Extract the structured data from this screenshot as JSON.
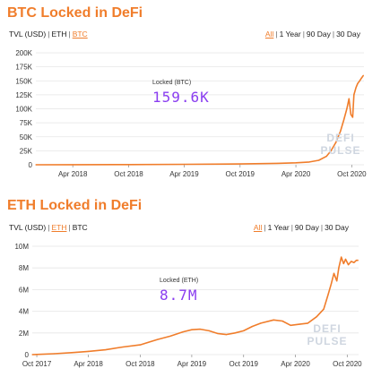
{
  "btc": {
    "title": "BTC Locked in DeFi",
    "units": [
      "TVL (USD)",
      "ETH",
      "BTC"
    ],
    "active_unit": 2,
    "ranges": [
      "All",
      "1 Year",
      "90 Day",
      "30 Day"
    ],
    "active_range": 0,
    "annotation_label": "Locked (BTC)",
    "annotation_value": "159.6K",
    "watermark": [
      "DEFI",
      "PULSE"
    ]
  },
  "eth": {
    "title": "ETH Locked in DeFi",
    "units": [
      "TVL (USD)",
      "ETH",
      "BTC"
    ],
    "active_unit": 1,
    "ranges": [
      "All",
      "1 Year",
      "90 Day",
      "30 Day"
    ],
    "active_range": 0,
    "annotation_label": "Locked (ETH)",
    "annotation_value": "8.7M",
    "watermark": [
      "DEFI",
      "PULSE"
    ]
  },
  "colors": {
    "accent": "#f07d2b",
    "value": "#8a3df0",
    "grid": "#e5e5e5",
    "watermark": "#cfd6e0"
  },
  "chart_data": [
    {
      "type": "area",
      "title": "BTC Locked in DeFi",
      "series_label": "Locked (BTC)",
      "x_ticks": [
        "Apr 2018",
        "Oct 2018",
        "Apr 2019",
        "Oct 2019",
        "Apr 2020",
        "Oct 2020"
      ],
      "y_ticks": [
        "0",
        "25K",
        "50K",
        "75K",
        "100K",
        "125K",
        "150K",
        "175K",
        "200K"
      ],
      "ylim": [
        0,
        200000
      ],
      "xlim": [
        "2017-12-01",
        "2020-11-10"
      ],
      "grid": true,
      "points": [
        [
          "2017-12-01",
          0
        ],
        [
          "2018-04-01",
          100
        ],
        [
          "2018-10-01",
          300
        ],
        [
          "2019-04-01",
          800
        ],
        [
          "2019-10-01",
          1500
        ],
        [
          "2020-02-01",
          2500
        ],
        [
          "2020-04-01",
          3500
        ],
        [
          "2020-05-15",
          5000
        ],
        [
          "2020-06-15",
          8000
        ],
        [
          "2020-07-10",
          15000
        ],
        [
          "2020-07-25",
          25000
        ],
        [
          "2020-08-10",
          40000
        ],
        [
          "2020-08-25",
          60000
        ],
        [
          "2020-09-05",
          80000
        ],
        [
          "2020-09-15",
          100000
        ],
        [
          "2020-09-22",
          118000
        ],
        [
          "2020-09-28",
          90000
        ],
        [
          "2020-10-04",
          85000
        ],
        [
          "2020-10-08",
          125000
        ],
        [
          "2020-10-15",
          138000
        ],
        [
          "2020-10-20",
          145000
        ],
        [
          "2020-10-27",
          150000
        ],
        [
          "2020-11-02",
          155000
        ],
        [
          "2020-11-08",
          159600
        ]
      ]
    },
    {
      "type": "area",
      "title": "ETH Locked in DeFi",
      "series_label": "Locked (ETH)",
      "x_ticks": [
        "Oct 2017",
        "Apr 2018",
        "Oct 2018",
        "Apr 2019",
        "Oct 2019",
        "Apr 2020",
        "Oct 2020"
      ],
      "y_ticks": [
        "0",
        "2M",
        "4M",
        "6M",
        "8M",
        "10M"
      ],
      "ylim": [
        0,
        10000000
      ],
      "xlim": [
        "2017-09-15",
        "2020-11-10"
      ],
      "grid": true,
      "points": [
        [
          "2017-09-15",
          0
        ],
        [
          "2017-10-01",
          20000
        ],
        [
          "2017-12-01",
          80000
        ],
        [
          "2018-02-01",
          180000
        ],
        [
          "2018-04-01",
          300000
        ],
        [
          "2018-06-01",
          450000
        ],
        [
          "2018-08-01",
          700000
        ],
        [
          "2018-10-01",
          900000
        ],
        [
          "2018-12-01",
          1400000
        ],
        [
          "2019-01-15",
          1700000
        ],
        [
          "2019-03-01",
          2100000
        ],
        [
          "2019-04-01",
          2300000
        ],
        [
          "2019-05-01",
          2350000
        ],
        [
          "2019-06-01",
          2200000
        ],
        [
          "2019-07-01",
          1950000
        ],
        [
          "2019-08-01",
          1850000
        ],
        [
          "2019-09-01",
          2000000
        ],
        [
          "2019-10-01",
          2200000
        ],
        [
          "2019-11-01",
          2600000
        ],
        [
          "2019-12-01",
          2900000
        ],
        [
          "2020-01-15",
          3200000
        ],
        [
          "2020-02-15",
          3100000
        ],
        [
          "2020-03-15",
          2700000
        ],
        [
          "2020-04-15",
          2800000
        ],
        [
          "2020-05-15",
          2900000
        ],
        [
          "2020-06-15",
          3500000
        ],
        [
          "2020-07-10",
          4200000
        ],
        [
          "2020-07-25",
          5500000
        ],
        [
          "2020-08-05",
          6500000
        ],
        [
          "2020-08-15",
          7500000
        ],
        [
          "2020-08-25",
          6800000
        ],
        [
          "2020-09-01",
          8000000
        ],
        [
          "2020-09-10",
          9000000
        ],
        [
          "2020-09-18",
          8400000
        ],
        [
          "2020-09-25",
          8800000
        ],
        [
          "2020-10-05",
          8300000
        ],
        [
          "2020-10-15",
          8600000
        ],
        [
          "2020-10-25",
          8500000
        ],
        [
          "2020-11-02",
          8700000
        ],
        [
          "2020-11-08",
          8700000
        ]
      ]
    }
  ]
}
